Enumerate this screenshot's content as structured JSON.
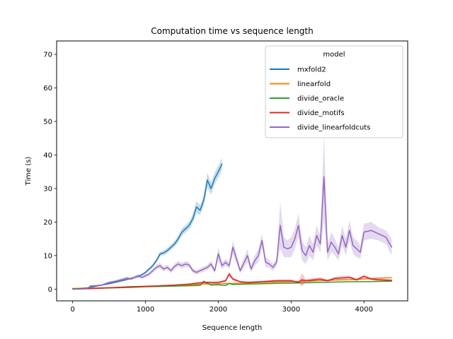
{
  "chart_data": {
    "type": "line",
    "title": "Computation time vs sequence length",
    "xlabel": "Sequence length",
    "ylabel": "Time (s)",
    "xlim": [
      -220,
      4600
    ],
    "ylim": [
      -3.5,
      74
    ],
    "xticks": [
      0,
      1000,
      2000,
      3000,
      4000
    ],
    "yticks": [
      0,
      10,
      20,
      30,
      40,
      50,
      60,
      70
    ],
    "xtick_labels": [
      "0",
      "1000",
      "2000",
      "3000",
      "4000"
    ],
    "ytick_labels": [
      "0",
      "10",
      "20",
      "30",
      "40",
      "50",
      "60",
      "70"
    ],
    "grid": false,
    "legend": {
      "title": "model",
      "placement": "top-right"
    },
    "series": [
      {
        "name": "mxfold2",
        "color": "#1f77b4",
        "x": [
          0,
          100,
          200,
          300,
          400,
          500,
          600,
          700,
          800,
          900,
          950,
          1000,
          1050,
          1100,
          1150,
          1200,
          1250,
          1300,
          1350,
          1400,
          1450,
          1500,
          1550,
          1600,
          1650,
          1700,
          1750,
          1800,
          1850,
          1900,
          1950,
          2000,
          2050
        ],
        "y": [
          0.1,
          0.2,
          0.4,
          0.8,
          1.2,
          1.6,
          2.1,
          2.6,
          3.2,
          3.8,
          4.3,
          5.0,
          6.0,
          7.0,
          8.5,
          10.5,
          10.8,
          11.5,
          12.5,
          13.5,
          15.0,
          17.0,
          18.0,
          19.0,
          21.0,
          24.5,
          23.5,
          26.5,
          32.5,
          30.0,
          33.0,
          35.0,
          37.3
        ],
        "band": [
          0.05,
          0.05,
          0.1,
          0.1,
          0.1,
          0.15,
          0.2,
          0.2,
          0.25,
          0.3,
          0.3,
          0.4,
          0.5,
          0.5,
          0.6,
          0.7,
          0.7,
          0.8,
          0.8,
          0.9,
          1.0,
          1.1,
          1.1,
          1.2,
          1.4,
          1.8,
          1.5,
          1.6,
          2.2,
          1.8,
          1.8,
          1.8,
          1.8
        ]
      },
      {
        "name": "linearfold",
        "color": "#ff7f0e",
        "x": [
          0,
          200,
          400,
          600,
          800,
          1000,
          1200,
          1400,
          1600,
          1800,
          2000,
          2200,
          2400,
          2600,
          2800,
          3000,
          3200,
          3400,
          3600,
          3800,
          4000,
          4200,
          4380
        ],
        "y": [
          0.2,
          0.3,
          0.4,
          0.5,
          0.7,
          0.9,
          1.0,
          1.2,
          1.3,
          1.5,
          1.6,
          1.7,
          1.8,
          2.0,
          2.1,
          2.2,
          2.4,
          2.5,
          2.7,
          2.8,
          3.0,
          3.3,
          3.4
        ],
        "band": [
          0.05,
          0.05,
          0.05,
          0.05,
          0.05,
          0.1,
          0.1,
          0.1,
          0.1,
          0.1,
          0.1,
          0.1,
          0.1,
          0.1,
          0.1,
          0.1,
          0.1,
          0.1,
          0.1,
          0.1,
          0.1,
          0.1,
          0.1
        ]
      },
      {
        "name": "divide_oracle",
        "color": "#2ca02c",
        "x": [
          0,
          200,
          400,
          600,
          800,
          1000,
          1200,
          1400,
          1600,
          1750,
          1800,
          1900,
          2000,
          2100,
          2150,
          2200,
          2400,
          2600,
          2800,
          3000,
          3200,
          3400,
          3600,
          3800,
          4000,
          4200,
          4380
        ],
        "y": [
          0.1,
          0.2,
          0.3,
          0.4,
          0.5,
          0.7,
          0.8,
          0.9,
          1.0,
          1.1,
          2.3,
          1.2,
          1.3,
          1.1,
          1.7,
          1.4,
          1.5,
          1.6,
          1.7,
          1.8,
          1.9,
          2.0,
          2.1,
          2.2,
          2.2,
          2.3,
          2.4
        ],
        "band": [
          0.05,
          0.05,
          0.05,
          0.05,
          0.05,
          0.05,
          0.05,
          0.05,
          0.1,
          0.1,
          0.5,
          0.1,
          0.1,
          0.1,
          0.3,
          0.1,
          0.1,
          0.1,
          0.1,
          0.1,
          0.1,
          0.1,
          0.1,
          0.1,
          0.1,
          0.1,
          0.1
        ]
      },
      {
        "name": "divide_motifs",
        "color": "#d62728",
        "x": [
          0,
          200,
          400,
          600,
          800,
          1000,
          1200,
          1400,
          1600,
          1800,
          2000,
          2100,
          2150,
          2200,
          2300,
          2400,
          2600,
          2800,
          3000,
          3100,
          3150,
          3200,
          3400,
          3500,
          3600,
          3800,
          3900,
          4000,
          4100,
          4200,
          4380
        ],
        "y": [
          0.0,
          0.1,
          0.3,
          0.5,
          0.7,
          0.8,
          1.0,
          1.2,
          1.5,
          2.0,
          2.0,
          2.5,
          4.5,
          3.0,
          2.2,
          2.0,
          2.2,
          2.5,
          2.5,
          2.0,
          2.8,
          2.5,
          3.0,
          2.5,
          3.2,
          3.5,
          2.8,
          3.8,
          3.0,
          2.8,
          2.6
        ],
        "band": [
          0.05,
          0.05,
          0.05,
          0.1,
          0.1,
          0.1,
          0.1,
          0.15,
          0.2,
          0.3,
          0.3,
          0.4,
          0.8,
          0.5,
          0.3,
          0.3,
          0.3,
          0.4,
          0.4,
          0.3,
          2.0,
          0.5,
          0.5,
          0.4,
          0.5,
          0.5,
          0.4,
          0.5,
          0.4,
          0.4,
          0.4
        ]
      },
      {
        "name": "divide_linearfoldcuts",
        "color": "#9467bd",
        "x": [
          0,
          100,
          200,
          250,
          300,
          400,
          500,
          600,
          700,
          750,
          800,
          850,
          900,
          950,
          1000,
          1050,
          1100,
          1150,
          1200,
          1250,
          1300,
          1350,
          1400,
          1450,
          1500,
          1550,
          1600,
          1650,
          1700,
          1750,
          1800,
          1850,
          1900,
          1950,
          2000,
          2050,
          2100,
          2150,
          2200,
          2300,
          2400,
          2450,
          2500,
          2550,
          2600,
          2650,
          2700,
          2750,
          2800,
          2850,
          2900,
          2950,
          3000,
          3050,
          3100,
          3150,
          3200,
          3250,
          3300,
          3350,
          3400,
          3450,
          3500,
          3550,
          3600,
          3650,
          3700,
          3750,
          3800,
          3850,
          3900,
          3950,
          4000,
          4100,
          4200,
          4300,
          4380
        ],
        "y": [
          0.0,
          0.0,
          0.2,
          1.0,
          1.0,
          1.2,
          2.0,
          2.4,
          3.0,
          3.3,
          3.0,
          3.5,
          4.0,
          3.5,
          4.0,
          4.5,
          5.5,
          6.5,
          7.0,
          6.0,
          6.5,
          5.5,
          6.8,
          7.5,
          7.0,
          7.5,
          7.2,
          5.5,
          5.0,
          5.5,
          6.0,
          6.5,
          7.5,
          5.5,
          10.5,
          7.0,
          8.0,
          7.0,
          12.5,
          5.5,
          10.0,
          6.0,
          8.5,
          10.0,
          14.5,
          8.0,
          7.5,
          6.5,
          8.0,
          19.0,
          12.5,
          12.0,
          12.5,
          15.0,
          19.0,
          11.5,
          10.0,
          13.0,
          11.0,
          16.0,
          13.5,
          33.5,
          11.0,
          14.0,
          12.5,
          10.5,
          16.0,
          12.5,
          17.5,
          13.0,
          12.0,
          11.0,
          17.0,
          17.5,
          16.5,
          15.5,
          12.5
        ],
        "band": [
          0.1,
          0.1,
          0.1,
          0.2,
          0.2,
          0.3,
          0.3,
          0.4,
          0.4,
          0.4,
          0.4,
          0.5,
          0.5,
          0.5,
          0.6,
          0.6,
          0.7,
          0.7,
          0.8,
          0.7,
          0.8,
          0.7,
          0.8,
          0.9,
          0.8,
          0.9,
          0.8,
          0.7,
          0.7,
          0.7,
          0.8,
          0.8,
          1.0,
          0.8,
          2.0,
          1.0,
          1.0,
          1.0,
          2.0,
          0.8,
          2.0,
          1.0,
          1.5,
          2.0,
          2.0,
          1.5,
          1.2,
          1.0,
          1.2,
          7.0,
          3.0,
          2.5,
          3.0,
          3.0,
          3.5,
          3.0,
          2.5,
          3.0,
          2.5,
          3.0,
          2.5,
          13.0,
          2.5,
          3.0,
          2.5,
          2.0,
          3.0,
          2.5,
          3.0,
          2.5,
          2.5,
          2.0,
          2.5,
          2.5,
          2.0,
          2.0,
          2.5
        ]
      }
    ]
  }
}
